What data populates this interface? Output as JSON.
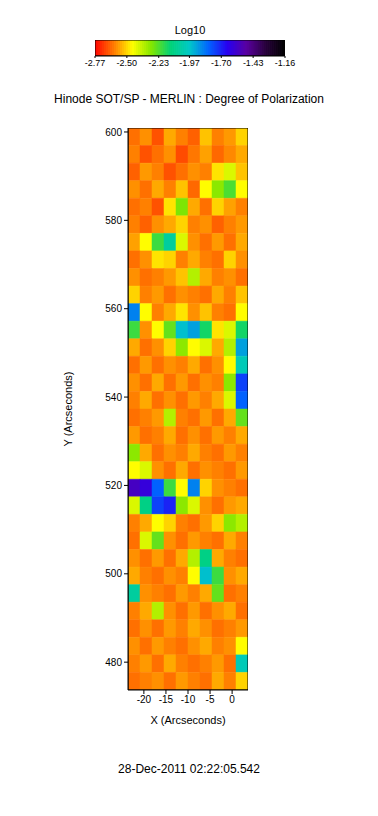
{
  "chart_data": {
    "type": "heatmap",
    "title": "Hinode SOT/SP - MERLIN : Degree of Polarization",
    "annotation": "28-Dec-2011 02:22:05.542",
    "x_label": "X (Arcseconds)",
    "y_label": "Y (Arcseconds)",
    "xlim": [
      -23.6,
      3.6
    ],
    "xticks": [
      -20,
      -15,
      -10,
      -5,
      0
    ],
    "ylim": [
      473.7,
      600.9
    ],
    "yticks": [
      480,
      500,
      520,
      540,
      560,
      580,
      600
    ],
    "grid": false,
    "x": [
      -22.24,
      -19.52,
      -16.8,
      -14.08,
      -11.36,
      -8.64,
      -5.92,
      -3.2,
      -0.48,
      2.24
    ],
    "y": [
      598.91,
      594.94,
      590.96,
      586.99,
      583.01,
      579.04,
      575.06,
      571.09,
      567.11,
      563.14,
      559.16,
      555.19,
      551.21,
      547.24,
      543.26,
      539.29,
      535.31,
      531.34,
      527.36,
      523.39,
      519.41,
      515.44,
      511.46,
      507.49,
      503.51,
      499.54,
      495.56,
      491.59,
      487.61,
      483.64,
      479.66,
      475.69
    ],
    "z": [
      [
        -2.62,
        -2.58,
        -2.66,
        -2.55,
        -2.6,
        -2.64,
        -2.52,
        -2.6,
        -2.57,
        -2.5
      ],
      [
        -2.6,
        -2.66,
        -2.62,
        -2.58,
        -2.67,
        -2.61,
        -2.56,
        -2.63,
        -2.59,
        -2.55
      ],
      [
        -2.64,
        -2.57,
        -2.6,
        -2.66,
        -2.62,
        -2.58,
        -2.6,
        -2.48,
        -2.4,
        -2.52
      ],
      [
        -2.58,
        -2.62,
        -2.55,
        -2.6,
        -2.52,
        -2.63,
        -2.45,
        -2.3,
        -2.22,
        -2.45
      ],
      [
        -2.62,
        -2.6,
        -2.66,
        -2.48,
        -2.28,
        -2.55,
        -2.62,
        -2.5,
        -2.56,
        -2.6
      ],
      [
        -2.6,
        -2.64,
        -2.58,
        -2.55,
        -2.5,
        -2.6,
        -2.58,
        -2.64,
        -2.6,
        -2.57
      ],
      [
        -2.56,
        -2.45,
        -2.2,
        -2.05,
        -2.4,
        -2.58,
        -2.62,
        -2.57,
        -2.62,
        -2.55
      ],
      [
        -2.62,
        -2.58,
        -2.48,
        -2.5,
        -2.6,
        -2.55,
        -2.6,
        -2.62,
        -2.5,
        -2.58
      ],
      [
        -2.58,
        -2.62,
        -2.6,
        -2.57,
        -2.52,
        -2.35,
        -2.55,
        -2.6,
        -2.58,
        -2.62
      ],
      [
        -2.5,
        -2.6,
        -2.57,
        -2.62,
        -2.58,
        -2.6,
        -2.62,
        -2.55,
        -2.6,
        -2.52
      ],
      [
        -1.85,
        -2.45,
        -2.6,
        -2.55,
        -2.48,
        -2.58,
        -2.52,
        -2.6,
        -2.62,
        -2.45
      ],
      [
        -2.2,
        -2.58,
        -2.45,
        -2.25,
        -1.95,
        -1.9,
        -2.15,
        -2.48,
        -2.4,
        -2.15
      ],
      [
        -2.55,
        -2.62,
        -2.58,
        -2.5,
        -2.3,
        -2.45,
        -2.4,
        -2.55,
        -2.35,
        -1.9
      ],
      [
        -2.62,
        -2.57,
        -2.62,
        -2.58,
        -2.6,
        -2.55,
        -2.62,
        -2.58,
        -2.45,
        -2.0
      ],
      [
        -2.58,
        -2.62,
        -2.55,
        -2.62,
        -2.57,
        -2.62,
        -2.58,
        -2.6,
        -2.3,
        -1.75
      ],
      [
        -2.6,
        -2.55,
        -2.62,
        -2.58,
        -2.62,
        -2.57,
        -2.6,
        -2.55,
        -2.4,
        -1.8
      ],
      [
        -2.62,
        -2.6,
        -2.57,
        -2.35,
        -2.6,
        -2.62,
        -2.57,
        -2.62,
        -2.55,
        -2.25
      ],
      [
        -2.57,
        -2.62,
        -2.6,
        -2.55,
        -2.62,
        -2.58,
        -2.62,
        -2.57,
        -2.6,
        -2.55
      ],
      [
        -2.3,
        -2.55,
        -2.62,
        -2.58,
        -2.6,
        -2.55,
        -2.6,
        -2.62,
        -2.57,
        -2.6
      ],
      [
        -2.45,
        -2.4,
        -2.58,
        -2.62,
        -2.55,
        -2.62,
        -2.58,
        -2.6,
        -2.62,
        -2.57
      ],
      [
        -1.55,
        -1.6,
        -1.8,
        -2.2,
        -2.45,
        -1.85,
        -2.5,
        -2.58,
        -2.6,
        -2.62
      ],
      [
        -2.4,
        -2.1,
        -1.75,
        -1.7,
        -2.3,
        -2.4,
        -2.58,
        -2.62,
        -2.57,
        -2.55
      ],
      [
        -2.6,
        -2.55,
        -2.45,
        -2.5,
        -2.6,
        -2.62,
        -2.57,
        -2.5,
        -2.3,
        -2.35
      ],
      [
        -2.62,
        -2.4,
        -2.25,
        -2.58,
        -2.62,
        -2.57,
        -2.6,
        -2.62,
        -2.55,
        -2.6
      ],
      [
        -2.58,
        -2.62,
        -2.57,
        -2.62,
        -2.55,
        -2.35,
        -2.1,
        -2.55,
        -2.6,
        -2.62
      ],
      [
        -2.55,
        -2.6,
        -2.62,
        -2.58,
        -2.6,
        -2.45,
        -1.95,
        -2.2,
        -2.58,
        -2.55
      ],
      [
        -2.05,
        -2.58,
        -2.6,
        -2.62,
        -2.57,
        -2.6,
        -2.55,
        -2.25,
        -2.62,
        -2.6
      ],
      [
        -2.6,
        -2.55,
        -2.35,
        -2.58,
        -2.62,
        -2.57,
        -2.62,
        -2.58,
        -2.55,
        -2.62
      ],
      [
        -2.62,
        -2.58,
        -2.62,
        -2.57,
        -2.6,
        -2.55,
        -2.58,
        -2.62,
        -2.6,
        -2.57
      ],
      [
        -2.58,
        -2.62,
        -2.57,
        -2.6,
        -2.62,
        -2.58,
        -2.55,
        -2.6,
        -2.58,
        -2.45
      ],
      [
        -2.6,
        -2.57,
        -2.62,
        -2.55,
        -2.6,
        -2.62,
        -2.6,
        -2.57,
        -2.62,
        -2.0
      ],
      [
        -2.62,
        -2.6,
        -2.58,
        -2.62,
        -2.57,
        -2.6,
        -2.62,
        -2.55,
        -2.6,
        -2.5
      ]
    ],
    "colorbar": {
      "label": "Log10",
      "range": [
        -2.77,
        -1.16
      ],
      "ticks": [
        -2.77,
        {
          "value": -2.5,
          "label": "-2.50"
        },
        -2.23,
        -1.97,
        {
          "value": -1.7,
          "label": "-1.70"
        },
        -1.43,
        -1.16
      ]
    }
  }
}
